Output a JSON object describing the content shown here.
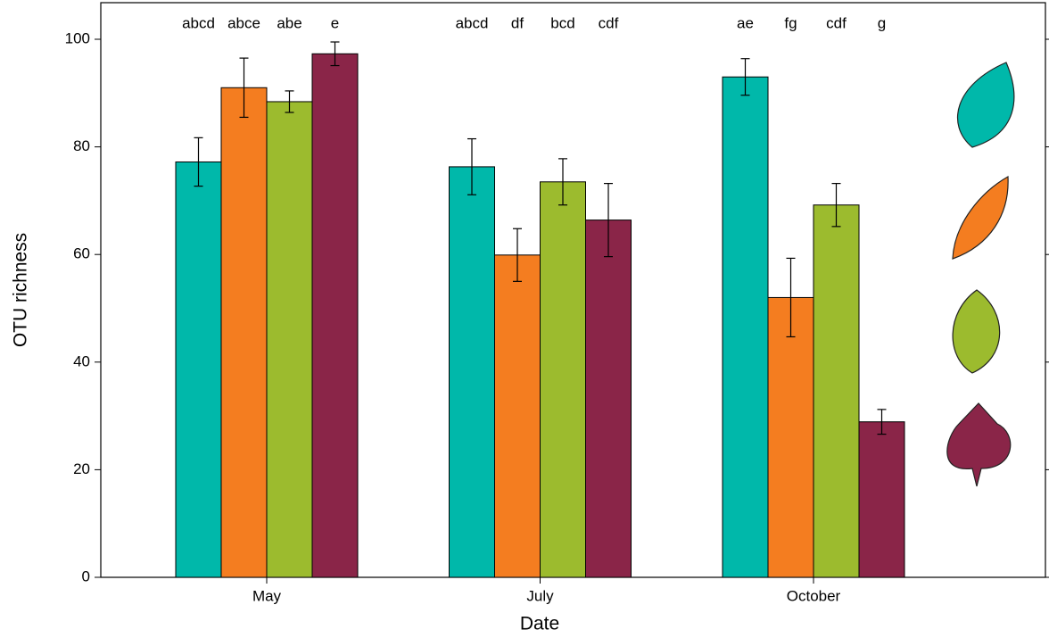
{
  "chart_data": {
    "type": "bar",
    "x_label": "Date",
    "y_label": "OTU richness",
    "categories": [
      "May",
      "July",
      "October"
    ],
    "series": [
      {
        "color": "#00b8aa",
        "values": [
          77.2,
          76.3,
          93.0
        ],
        "errors": [
          4.5,
          5.2,
          3.4
        ],
        "letters": [
          "abcd",
          "abcd",
          "ae"
        ]
      },
      {
        "color": "#f47d20",
        "values": [
          91.0,
          59.9,
          52.0
        ],
        "errors": [
          5.5,
          4.9,
          7.3
        ],
        "letters": [
          "abce",
          "df",
          "fg"
        ]
      },
      {
        "color": "#9cbb2e",
        "values": [
          88.4,
          73.5,
          69.2
        ],
        "errors": [
          2.0,
          4.3,
          4.0
        ],
        "letters": [
          "abe",
          "bcd",
          "cdf"
        ]
      },
      {
        "color": "#8a2548",
        "values": [
          97.3,
          66.4,
          28.9
        ],
        "errors": [
          2.2,
          6.8,
          2.3
        ],
        "letters": [
          "e",
          "cdf",
          "g"
        ]
      }
    ],
    "ylim": [
      0,
      106.8
    ],
    "yticks": [
      0,
      20,
      40,
      60,
      80,
      100
    ]
  }
}
